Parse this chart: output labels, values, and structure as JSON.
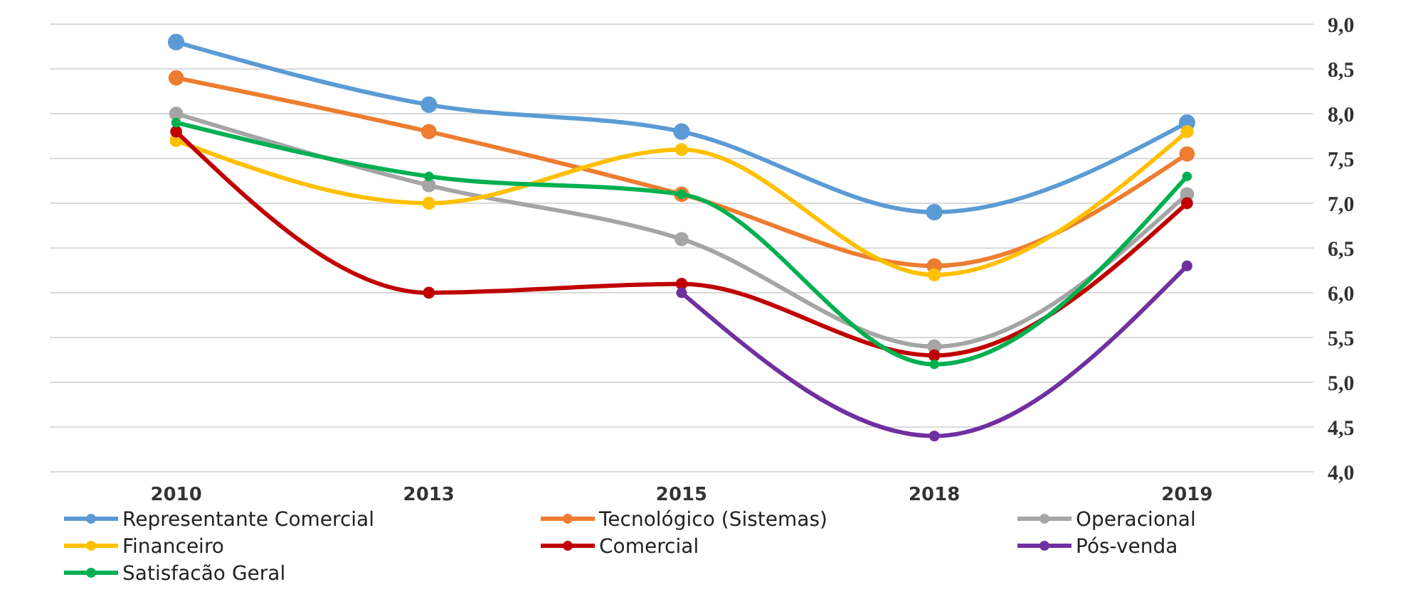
{
  "chart_data": {
    "type": "line",
    "categories": [
      "2010",
      "2013",
      "2015",
      "2018",
      "2019"
    ],
    "series": [
      {
        "name": "Representante Comercial",
        "color": "#5b9bd5",
        "values": [
          8.8,
          8.1,
          7.8,
          6.9,
          7.9
        ]
      },
      {
        "name": "Tecnológico (Sistemas)",
        "color": "#ed7d31",
        "values": [
          8.4,
          7.8,
          7.1,
          6.3,
          7.55
        ]
      },
      {
        "name": "Operacional",
        "color": "#a5a5a5",
        "values": [
          8.0,
          7.2,
          6.6,
          5.4,
          7.1
        ]
      },
      {
        "name": "Financeiro",
        "color": "#ffc000",
        "values": [
          7.7,
          7.0,
          7.6,
          6.2,
          7.8
        ]
      },
      {
        "name": "Comercial",
        "color": "#c00000",
        "values": [
          7.8,
          6.0,
          6.1,
          5.3,
          7.0
        ]
      },
      {
        "name": "Pós-venda",
        "color": "#7030a0",
        "values": [
          null,
          null,
          6.0,
          4.4,
          6.3
        ]
      },
      {
        "name": "Satisfacão Geral",
        "color": "#00b050",
        "values": [
          7.9,
          7.3,
          7.1,
          5.2,
          7.3
        ]
      }
    ],
    "ylim": [
      4,
      9
    ],
    "yticks": [
      {
        "value": 4,
        "label": "4,0"
      },
      {
        "value": 4.5,
        "label": "4,5"
      },
      {
        "value": 5,
        "label": "5,0"
      },
      {
        "value": 5.5,
        "label": "5,5"
      },
      {
        "value": 6,
        "label": "6,0"
      },
      {
        "value": 6.5,
        "label": "6,5"
      },
      {
        "value": 7,
        "label": "7,0"
      },
      {
        "value": 7.5,
        "label": "7,5"
      },
      {
        "value": 8,
        "label": "8,0"
      },
      {
        "value": 8.5,
        "label": "8,5"
      },
      {
        "value": 9,
        "label": "9,0"
      }
    ],
    "grid": "y",
    "legend": "bottom",
    "marker": "circle",
    "line_style": "solid"
  }
}
